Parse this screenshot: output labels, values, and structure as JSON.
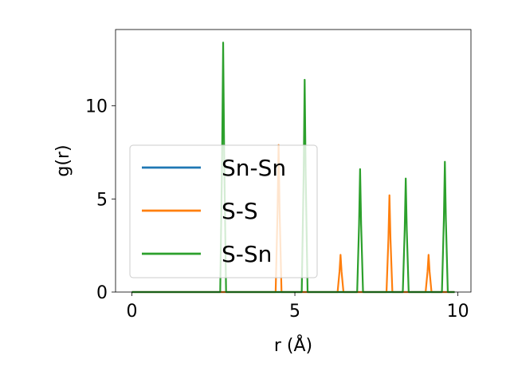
{
  "chart_data": {
    "type": "line",
    "title": "",
    "xlabel": "r (Å)",
    "ylabel": "g(r)",
    "xlim": [
      -0.5,
      10.4
    ],
    "ylim": [
      0,
      14.1
    ],
    "xticks": [
      0,
      5,
      10
    ],
    "xtick_labels": [
      "0",
      "5",
      "10"
    ],
    "yticks": [
      0,
      5,
      10
    ],
    "ytick_labels": [
      "0",
      "5",
      "10"
    ],
    "grid": false,
    "legend": {
      "placement": "center-left"
    },
    "x_range": [
      0,
      9.9
    ],
    "series": [
      {
        "name": "Sn-Sn",
        "color": "#1f77b4",
        "peaks": []
      },
      {
        "name": "S-S",
        "color": "#ff7f0e",
        "peaks": [
          {
            "x": 4.5,
            "y": 7.9
          },
          {
            "x": 6.4,
            "y": 2.0
          },
          {
            "x": 7.9,
            "y": 5.2
          },
          {
            "x": 9.1,
            "y": 2.0
          }
        ]
      },
      {
        "name": "S-Sn",
        "color": "#2ca02c",
        "peaks": [
          {
            "x": 2.8,
            "y": 13.4
          },
          {
            "x": 5.3,
            "y": 11.4
          },
          {
            "x": 7.0,
            "y": 6.6
          },
          {
            "x": 8.4,
            "y": 6.1
          },
          {
            "x": 9.6,
            "y": 7.0
          }
        ]
      }
    ]
  }
}
